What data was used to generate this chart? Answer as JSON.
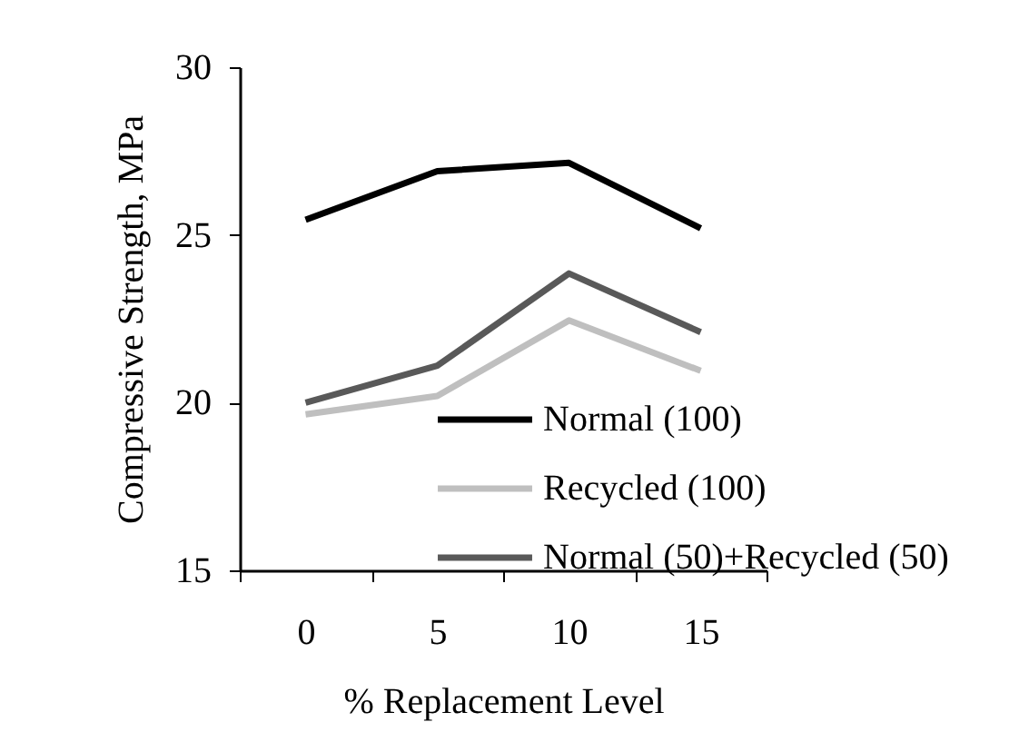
{
  "chart_data": {
    "type": "line",
    "xlabel": "% Replacement Level",
    "ylabel": "Compressive Strength, MPa",
    "categories": [
      "0",
      "5",
      "10",
      "15"
    ],
    "series": [
      {
        "name": "Normal (100)",
        "color": "#000000",
        "values": [
          25.45,
          26.9,
          27.15,
          25.2
        ]
      },
      {
        "name": "Recycled (100)",
        "color": "#bfbfbf",
        "values": [
          19.65,
          20.2,
          22.45,
          20.95
        ]
      },
      {
        "name": "Normal (50)+Recycled (50)",
        "color": "#595959",
        "values": [
          20.0,
          21.1,
          23.85,
          22.1
        ]
      }
    ],
    "ylim": [
      15,
      30
    ],
    "yticks": [
      15,
      20,
      25,
      30
    ],
    "grid": false,
    "legend": "bottom right",
    "marker": "none",
    "line_style": "solid"
  }
}
